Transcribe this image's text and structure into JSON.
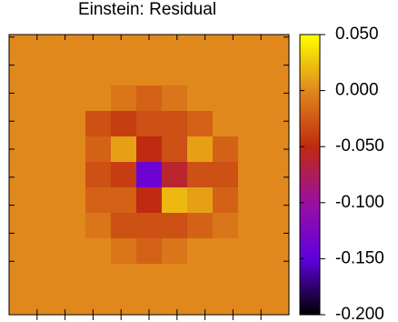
{
  "chart_data": {
    "type": "heatmap",
    "title": "Einstein: Residual",
    "colormap": [
      "#000000",
      "#6000e0",
      "#9a10a0",
      "#c02a10",
      "#e0881c",
      "#ffff00"
    ],
    "clim": [
      -0.2,
      0.05
    ],
    "cticks": [
      {
        "value": 0.05,
        "label": "0.050"
      },
      {
        "value": 0,
        "label": "0.000"
      },
      {
        "value": -0.05,
        "label": "-0.050"
      },
      {
        "value": -0.1,
        "label": "-0.100"
      },
      {
        "value": -0.15,
        "label": "-0.150"
      },
      {
        "value": -0.2,
        "label": "-0.200"
      }
    ],
    "z": [
      [
        0,
        0,
        0,
        0,
        0,
        0,
        0,
        0,
        0,
        0,
        0
      ],
      [
        0,
        0,
        0,
        0,
        0,
        0,
        0,
        0,
        0,
        0,
        0
      ],
      [
        0,
        0,
        0,
        0,
        -0.01,
        -0.02,
        -0.01,
        0,
        0,
        0,
        0
      ],
      [
        0,
        0,
        0,
        -0.03,
        -0.04,
        -0.03,
        -0.03,
        -0.02,
        0,
        0,
        0
      ],
      [
        0,
        0,
        0,
        -0.02,
        0.01,
        -0.05,
        -0.03,
        0.01,
        -0.02,
        0,
        0
      ],
      [
        0,
        0,
        0,
        -0.03,
        -0.04,
        -0.14,
        -0.06,
        -0.03,
        -0.03,
        0,
        0
      ],
      [
        0,
        0,
        0,
        -0.02,
        -0.02,
        -0.05,
        0.02,
        0.01,
        -0.02,
        0,
        0
      ],
      [
        0,
        0,
        0,
        -0.01,
        -0.03,
        -0.03,
        -0.03,
        -0.02,
        -0.01,
        0,
        0
      ],
      [
        0,
        0,
        0,
        0,
        -0.01,
        -0.02,
        -0.01,
        0,
        0,
        0,
        0
      ],
      [
        0,
        0,
        0,
        0,
        0,
        0,
        0,
        0,
        0,
        0,
        0
      ],
      [
        0,
        0,
        0,
        0,
        0,
        0,
        0,
        0,
        0,
        0,
        0
      ]
    ]
  }
}
